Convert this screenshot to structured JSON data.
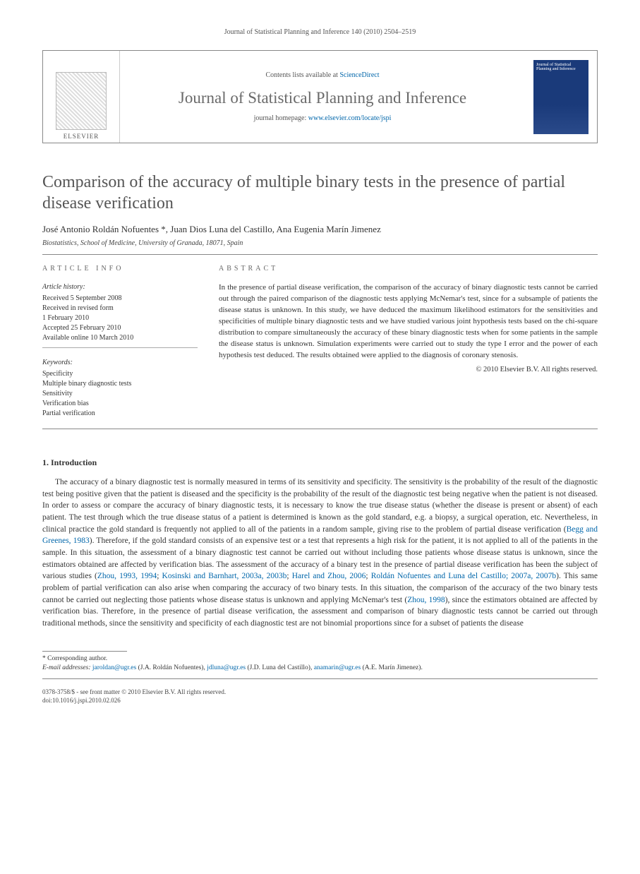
{
  "running_header": "Journal of Statistical Planning and Inference 140 (2010) 2504–2519",
  "masthead": {
    "publisher_label": "ELSEVIER",
    "contents_prefix": "Contents lists available at ",
    "contents_link_text": "ScienceDirect",
    "journal_name": "Journal of Statistical Planning and Inference",
    "homepage_prefix": "journal homepage: ",
    "homepage_link_text": "www.elsevier.com/locate/jspi",
    "cover_caption": "Journal of Statistical Planning and Inference"
  },
  "article": {
    "title": "Comparison of the accuracy of multiple binary tests in the presence of partial disease verification",
    "authors": "José Antonio Roldán Nofuentes *, Juan Dios Luna del Castillo, Ana Eugenia Marín Jimenez",
    "affiliation": "Biostatistics, School of Medicine, University of Granada, 18071, Spain"
  },
  "labels": {
    "article_info": "ARTICLE INFO",
    "abstract": "ABSTRACT",
    "history_head": "Article history:",
    "keywords_head": "Keywords:"
  },
  "history": {
    "received": "Received 5 September 2008",
    "revised": "Received in revised form",
    "revised_date": "1 February 2010",
    "accepted": "Accepted 25 February 2010",
    "online": "Available online 10 March 2010"
  },
  "keywords": [
    "Specificity",
    "Multiple binary diagnostic tests",
    "Sensitivity",
    "Verification bias",
    "Partial verification"
  ],
  "abstract": "In the presence of partial disease verification, the comparison of the accuracy of binary diagnostic tests cannot be carried out through the paired comparison of the diagnostic tests applying McNemar's test, since for a subsample of patients the disease status is unknown. In this study, we have deduced the maximum likelihood estimators for the sensitivities and specificities of multiple binary diagnostic tests and we have studied various joint hypothesis tests based on the chi-square distribution to compare simultaneously the accuracy of these binary diagnostic tests when for some patients in the sample the disease status is unknown. Simulation experiments were carried out to study the type I error and the power of each hypothesis test deduced. The results obtained were applied to the diagnosis of coronary stenosis.",
  "copyright": "© 2010 Elsevier B.V. All rights reserved.",
  "section1": {
    "title": "1. Introduction",
    "para": "The accuracy of a binary diagnostic test is normally measured in terms of its sensitivity and specificity. The sensitivity is the probability of the result of the diagnostic test being positive given that the patient is diseased and the specificity is the probability of the result of the diagnostic test being negative when the patient is not diseased. In order to assess or compare the accuracy of binary diagnostic tests, it is necessary to know the true disease status (whether the disease is present or absent) of each patient. The test through which the true disease status of a patient is determined is known as the gold standard, e.g. a biopsy, a surgical operation, etc. Nevertheless, in clinical practice the gold standard is frequently not applied to all of the patients in a random sample, giving rise to the problem of partial disease verification (",
    "cite1": "Begg and Greenes, 1983",
    "para2": "). Therefore, if the gold standard consists of an expensive test or a test that represents a high risk for the patient, it is not applied to all of the patients in the sample. In this situation, the assessment of a binary diagnostic test cannot be carried out without including those patients whose disease status is unknown, since the estimators obtained are affected by verification bias. The assessment of the accuracy of a binary test in the presence of partial disease verification has been the subject of various studies (",
    "cite2": "Zhou, 1993, 1994",
    "sep1": "; ",
    "cite3": "Kosinski and Barnhart, 2003a, 2003b",
    "sep2": "; ",
    "cite4": "Harel and Zhou, 2006",
    "sep3": "; ",
    "cite5": "Roldán Nofuentes and Luna del Castillo; 2007a, 2007b",
    "para3": "). This same problem of partial verification can also arise when comparing the accuracy of two binary tests. In this situation, the comparison of the accuracy of the two binary tests cannot be carried out neglecting those patients whose disease status is unknown and applying McNemar's test (",
    "cite6": "Zhou, 1998",
    "para4": "), since the estimators obtained are affected by verification bias. Therefore, in the presence of partial disease verification, the assessment and comparison of binary diagnostic tests cannot be carried out through traditional methods, since the sensitivity and specificity of each diagnostic test are not binomial proportions since for a subset of patients the disease"
  },
  "footnote": {
    "corresponding": "* Corresponding author.",
    "emails_label": "E-mail addresses: ",
    "email1": "jaroldan@ugr.es",
    "email1_name": " (J.A. Roldán Nofuentes), ",
    "email2": "jdluna@ugr.es",
    "email2_name": " (J.D. Luna del Castillo), ",
    "email3": "anamarin@ugr.es",
    "email3_name": " (A.E. Marín Jimenez)."
  },
  "bottom": {
    "line1": "0378-3758/$ - see front matter © 2010 Elsevier B.V. All rights reserved.",
    "line2": "doi:10.1016/j.jspi.2010.02.026"
  }
}
